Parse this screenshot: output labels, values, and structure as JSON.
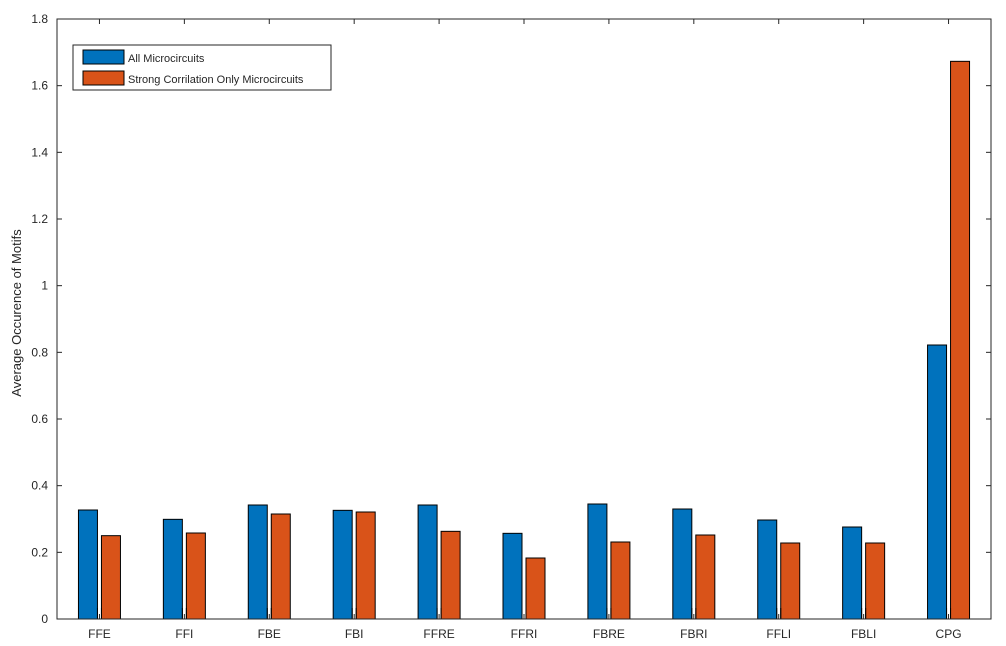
{
  "chart_data": {
    "type": "bar",
    "title": "",
    "xlabel": "",
    "ylabel": "Average Occurence of Motifs",
    "ylim": [
      0,
      1.8
    ],
    "yticks": [
      "0",
      "0.2",
      "0.4",
      "0.6",
      "0.8",
      "1",
      "1.2",
      "1.4",
      "1.6",
      "1.8"
    ],
    "categories": [
      "FFE",
      "FFI",
      "FBE",
      "FBI",
      "FFRE",
      "FFRI",
      "FBRE",
      "FBRI",
      "FFLI",
      "FBLI",
      "CPG"
    ],
    "series": [
      {
        "name": "All Microcircuits",
        "color": "#0072BD",
        "values": [
          0.327,
          0.299,
          0.342,
          0.326,
          0.342,
          0.257,
          0.345,
          0.33,
          0.297,
          0.276,
          0.822
        ]
      },
      {
        "name": "Strong Corrilation Only Microcircuits",
        "color": "#D95319",
        "values": [
          0.25,
          0.258,
          0.315,
          0.321,
          0.263,
          0.183,
          0.231,
          0.252,
          0.228,
          0.228,
          1.673
        ]
      }
    ],
    "legend": "top-left",
    "grid": false
  }
}
